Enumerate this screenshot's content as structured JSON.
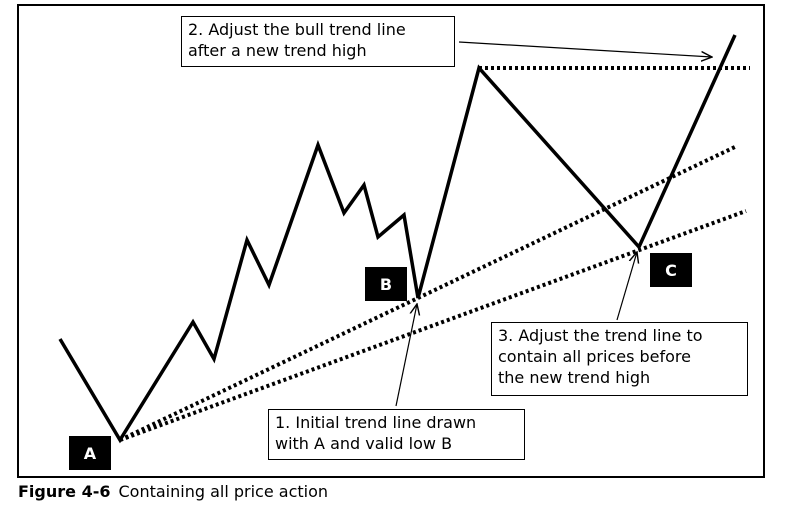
{
  "callouts": {
    "adjust_bull": "2. Adjust the bull trend line\nafter a new trend high",
    "adjust_contain": "3. Adjust the trend line to\ncontain all prices before\nthe new trend high",
    "initial": "1. Initial trend line drawn\nwith A and valid low B"
  },
  "points": {
    "a": "A",
    "b": "B",
    "c": "C"
  },
  "caption": {
    "figure": "Figure 4-6",
    "title": "Containing all price action"
  },
  "colors": {
    "line": "#000000",
    "background": "#ffffff"
  }
}
